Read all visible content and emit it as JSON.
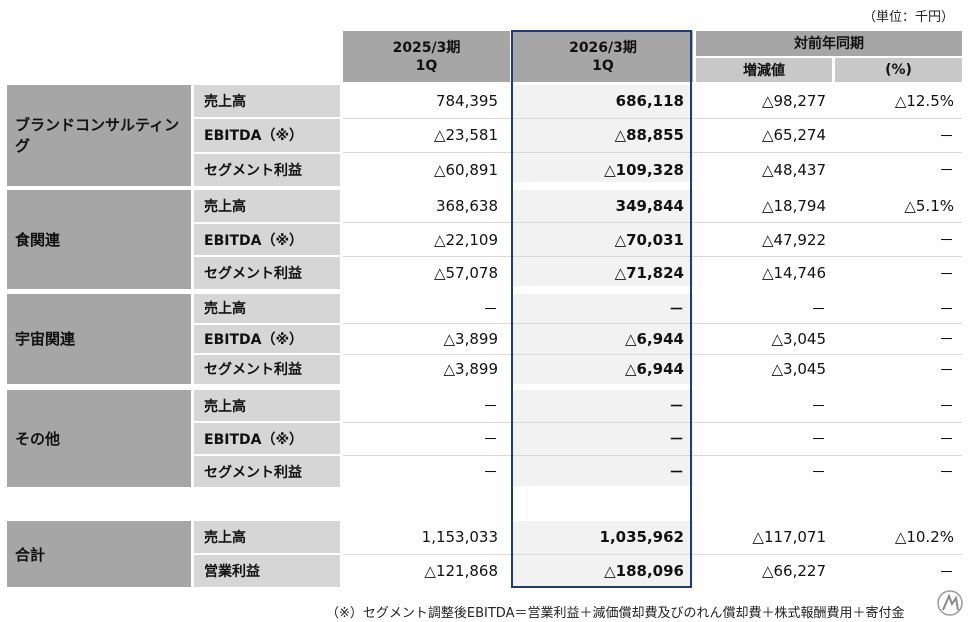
{
  "unit": "（単位：千円）",
  "headers": {
    "col1": [
      "2025/3期",
      "1Q"
    ],
    "col2": [
      "2026/3期",
      "1Q"
    ],
    "yoy": "対前年同期",
    "change": "増減値",
    "pct": "(%)"
  },
  "segments": [
    {
      "name": "ブランドコンサルティング",
      "rows": [
        {
          "label": "売上高",
          "prev": "784,395",
          "curr": "686,118",
          "change": "△98,277",
          "pct": "△12.5%"
        },
        {
          "label": "EBITDA（※）",
          "prev": "△23,581",
          "curr": "△88,855",
          "change": "△65,274",
          "pct": "－"
        },
        {
          "label": "セグメント利益",
          "prev": "△60,891",
          "curr": "△109,328",
          "change": "△48,437",
          "pct": "－"
        }
      ]
    },
    {
      "name": "食関連",
      "rows": [
        {
          "label": "売上高",
          "prev": "368,638",
          "curr": "349,844",
          "change": "△18,794",
          "pct": "△5.1%"
        },
        {
          "label": "EBITDA（※）",
          "prev": "△22,109",
          "curr": "△70,031",
          "change": "△47,922",
          "pct": "－"
        },
        {
          "label": "セグメント利益",
          "prev": "△57,078",
          "curr": "△71,824",
          "change": "△14,746",
          "pct": "－"
        }
      ]
    },
    {
      "name": "宇宙関連",
      "rows": [
        {
          "label": "売上高",
          "prev": "－",
          "curr": "－",
          "change": "－",
          "pct": "－"
        },
        {
          "label": "EBITDA（※）",
          "prev": "△3,899",
          "curr": "△6,944",
          "change": "△3,045",
          "pct": "－"
        },
        {
          "label": "セグメント利益",
          "prev": "△3,899",
          "curr": "△6,944",
          "change": "△3,045",
          "pct": "－"
        }
      ]
    },
    {
      "name": "その他",
      "rows": [
        {
          "label": "売上高",
          "prev": "－",
          "curr": "－",
          "change": "－",
          "pct": "－"
        },
        {
          "label": "EBITDA（※）",
          "prev": "－",
          "curr": "－",
          "change": "－",
          "pct": "－"
        },
        {
          "label": "セグメント利益",
          "prev": "－",
          "curr": "－",
          "change": "－",
          "pct": "－"
        }
      ]
    }
  ],
  "total": {
    "name": "合計",
    "rows": [
      {
        "label": "売上高",
        "prev": "1,153,033",
        "curr": "1,035,962",
        "change": "△117,071",
        "pct": "△10.2%"
      },
      {
        "label": "営業利益",
        "prev": "△121,868",
        "curr": "△188,096",
        "change": "△66,227",
        "pct": "－"
      }
    ]
  },
  "note": "（※）セグメント調整後EBITDA＝営業利益＋減価償却費及びのれん償却費＋株式報酬費用＋寄付金",
  "colors": {
    "highlight_border": "#1f3d6d",
    "header_bg": "#a6a6a6",
    "label_bg": "#d6d6d6"
  }
}
